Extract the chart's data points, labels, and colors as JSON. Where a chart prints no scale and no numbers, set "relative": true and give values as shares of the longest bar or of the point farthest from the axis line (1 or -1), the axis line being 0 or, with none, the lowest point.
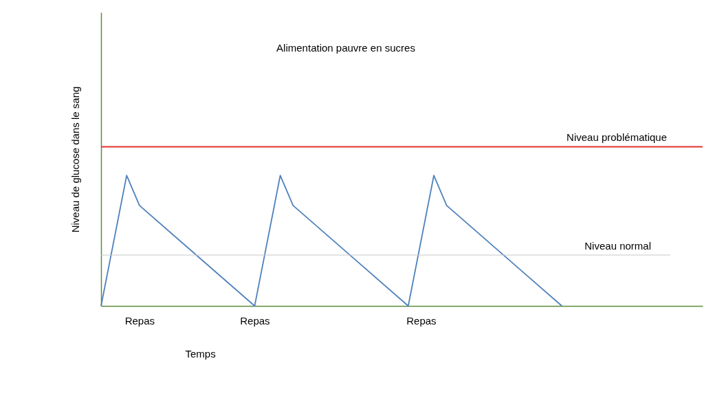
{
  "chart_data": {
    "type": "line",
    "relative": true,
    "title": "Alimentation pauvre en sucres",
    "xlabel": "Temps",
    "ylabel": "Niveau de glucose dans le sang",
    "grid": false,
    "categories": [
      null,
      null,
      null,
      "Repas",
      null,
      null,
      null,
      null,
      null,
      null,
      null,
      null,
      "Repas",
      null,
      null,
      null,
      null,
      null,
      null,
      null,
      null,
      null,
      null,
      null,
      null,
      "Repas",
      null,
      null,
      null,
      null,
      null,
      null,
      null,
      null,
      null,
      null,
      null,
      null,
      null,
      null,
      null,
      null,
      null,
      null,
      null,
      null,
      null,
      null
    ],
    "series": [
      {
        "color": "#4f81bd",
        "values": [
          0,
          null,
          1,
          0.77,
          null,
          null,
          null,
          null,
          null,
          null,
          null,
          null,
          0,
          null,
          1,
          0.77,
          null,
          null,
          null,
          null,
          null,
          null,
          null,
          null,
          0,
          null,
          1,
          0.77,
          null,
          null,
          null,
          null,
          null,
          null,
          null,
          null,
          0,
          null,
          null,
          null,
          null,
          null,
          null,
          null,
          null,
          null,
          null,
          null
        ]
      }
    ],
    "ref_lines": [
      {
        "axis": "y",
        "value": 1.22,
        "label": "Niveau problématique",
        "color": "#e3302c"
      },
      {
        "axis": "y",
        "value": 0.39,
        "label": "Niveau normal",
        "color": "#c8c8c8"
      }
    ]
  }
}
